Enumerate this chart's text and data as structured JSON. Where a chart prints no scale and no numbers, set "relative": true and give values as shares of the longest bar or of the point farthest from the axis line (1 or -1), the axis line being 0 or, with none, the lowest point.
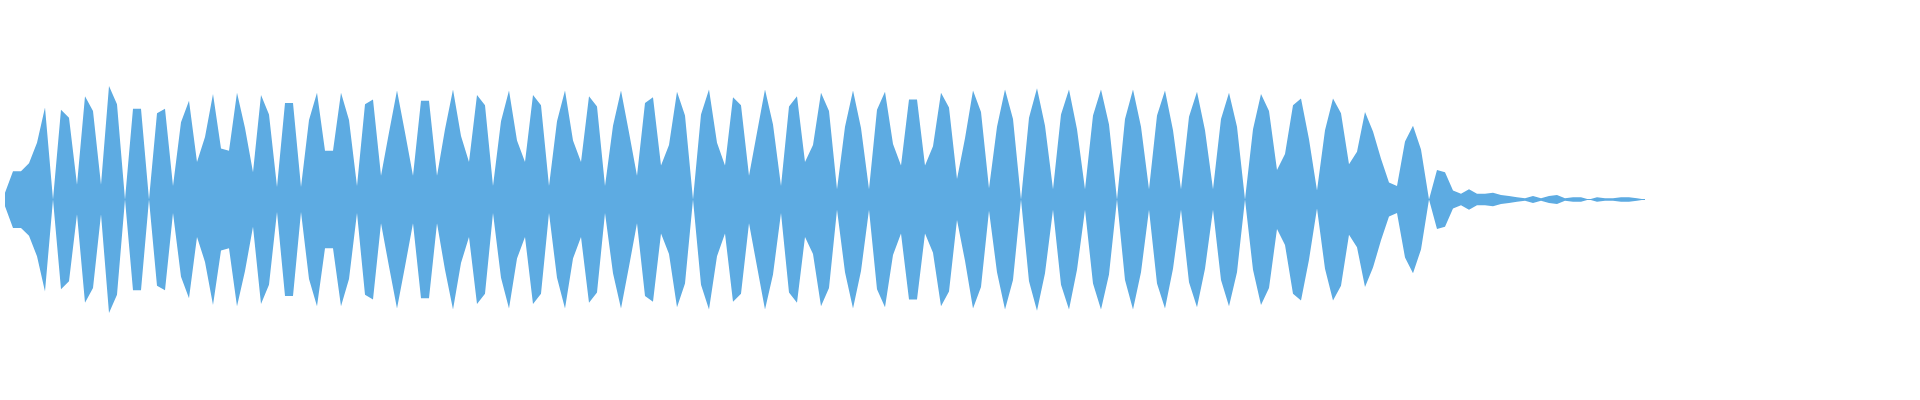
{
  "chart_data": {
    "type": "area",
    "relative": true,
    "categories": [
      null,
      null,
      null,
      null,
      null,
      null,
      null,
      null,
      null,
      null,
      null,
      null,
      null,
      null,
      null,
      null,
      null,
      null,
      null,
      null,
      null,
      null,
      null,
      null,
      null,
      null,
      null,
      null,
      null,
      null,
      null,
      null,
      null,
      null,
      null,
      null,
      null,
      null,
      null,
      null,
      null,
      null,
      null,
      null,
      null,
      null,
      null,
      null,
      null,
      null,
      null,
      null,
      null,
      null,
      null,
      null,
      null,
      null,
      null,
      null,
      null,
      null,
      null,
      null,
      null,
      null,
      null,
      null,
      null,
      null,
      null,
      null,
      null,
      null,
      null,
      null,
      null,
      null,
      null,
      null,
      null,
      null,
      null,
      null,
      null,
      null,
      null,
      null,
      null,
      null,
      null,
      null,
      null,
      null,
      null,
      null,
      null,
      null,
      null,
      null,
      null,
      null,
      null,
      null,
      null,
      null,
      null,
      null,
      null,
      null,
      null,
      null,
      null,
      null,
      null,
      null,
      null,
      null,
      null,
      null,
      null,
      null,
      null,
      null,
      null,
      null,
      null,
      null,
      null,
      null,
      null,
      null,
      null,
      null,
      null,
      null,
      null,
      null,
      null,
      null,
      null,
      null,
      null,
      null,
      null,
      null,
      null,
      null,
      null,
      null,
      null,
      null,
      null,
      null,
      null,
      null,
      null,
      null,
      null,
      null,
      null,
      null,
      null,
      null,
      null,
      null,
      null,
      null,
      null,
      null,
      null,
      null,
      null,
      null,
      null,
      null,
      null,
      null,
      null,
      null,
      null,
      null,
      null,
      null,
      null,
      null,
      null,
      null,
      null,
      null,
      null,
      null,
      null,
      null,
      null,
      null,
      null,
      null,
      null,
      null,
      null,
      null,
      null,
      null,
      null,
      null
    ],
    "series": [
      {
        "color": "#5dabe2",
        "values": [
          0.06,
          0.25,
          0.25,
          0.32,
          0.5,
          0.81,
          0,
          0.79,
          0.72,
          0.13,
          0.91,
          0.78,
          0.13,
          1,
          0.84,
          0,
          0.8,
          0.8,
          0,
          0.76,
          0.8,
          0.12,
          0.68,
          0.87,
          0.33,
          0.55,
          0.93,
          0.45,
          0.43,
          0.94,
          0.63,
          0.24,
          0.92,
          0.75,
          0.11,
          0.85,
          0.85,
          0.11,
          0.7,
          0.94,
          0.43,
          0.43,
          0.94,
          0.7,
          0.12,
          0.84,
          0.88,
          0.21,
          0.59,
          0.96,
          0.59,
          0.21,
          0.87,
          0.87,
          0.21,
          0.62,
          0.97,
          0.56,
          0.33,
          0.92,
          0.83,
          0.12,
          0.69,
          0.96,
          0.52,
          0.33,
          0.92,
          0.83,
          0.12,
          0.69,
          0.96,
          0.52,
          0.33,
          0.91,
          0.82,
          0.12,
          0.65,
          0.96,
          0.59,
          0.21,
          0.85,
          0.9,
          0.3,
          0.48,
          0.95,
          0.74,
          0,
          0.75,
          0.97,
          0.5,
          0.3,
          0.9,
          0.83,
          0.21,
          0.59,
          0.97,
          0.66,
          0.12,
          0.82,
          0.91,
          0.33,
          0.48,
          0.94,
          0.78,
          0.09,
          0.64,
          0.96,
          0.63,
          0.09,
          0.79,
          0.95,
          0.49,
          0.3,
          0.88,
          0.88,
          0.3,
          0.47,
          0.94,
          0.81,
          0.18,
          0.54,
          0.96,
          0.77,
          0.1,
          0.64,
          0.97,
          0.71,
          0,
          0.72,
          0.98,
          0.65,
          0.09,
          0.75,
          0.97,
          0.62,
          0.09,
          0.74,
          0.97,
          0.66,
          0,
          0.71,
          0.97,
          0.64,
          0.09,
          0.74,
          0.96,
          0.61,
          0.09,
          0.73,
          0.95,
          0.61,
          0.09,
          0.71,
          0.94,
          0.64,
          0,
          0.62,
          0.93,
          0.78,
          0.26,
          0.4,
          0.83,
          0.89,
          0.53,
          0.08,
          0.61,
          0.89,
          0.76,
          0.31,
          0.42,
          0.77,
          0.6,
          0.36,
          0.15,
          0.12,
          0.51,
          0.65,
          0.44,
          0,
          0.26,
          0.24,
          0.08,
          0.05,
          0.09,
          0.05,
          0.05,
          0.06,
          0.04,
          0.03,
          0.02,
          0.01,
          0.03,
          0.01,
          0.03,
          0.04,
          0.01,
          0.02,
          0.02,
          0,
          0.02,
          0.01,
          0.01,
          0.02,
          0.02,
          0.01,
          0
        ]
      },
      {
        "color": "#5dabe2",
        "values": [
          -0.06,
          -0.25,
          -0.25,
          -0.32,
          -0.5,
          -0.81,
          0,
          -0.79,
          -0.72,
          -0.13,
          -0.91,
          -0.78,
          -0.13,
          -1,
          -0.84,
          0,
          -0.8,
          -0.8,
          0,
          -0.76,
          -0.8,
          -0.12,
          -0.68,
          -0.87,
          -0.33,
          -0.55,
          -0.93,
          -0.45,
          -0.43,
          -0.94,
          -0.63,
          -0.24,
          -0.92,
          -0.75,
          -0.11,
          -0.85,
          -0.85,
          -0.11,
          -0.7,
          -0.94,
          -0.43,
          -0.43,
          -0.94,
          -0.7,
          -0.12,
          -0.84,
          -0.88,
          -0.21,
          -0.59,
          -0.96,
          -0.59,
          -0.21,
          -0.87,
          -0.87,
          -0.21,
          -0.62,
          -0.97,
          -0.56,
          -0.33,
          -0.92,
          -0.83,
          -0.12,
          -0.69,
          -0.96,
          -0.52,
          -0.33,
          -0.92,
          -0.83,
          -0.12,
          -0.69,
          -0.96,
          -0.52,
          -0.33,
          -0.91,
          -0.82,
          -0.12,
          -0.65,
          -0.96,
          -0.59,
          -0.21,
          -0.85,
          -0.9,
          -0.3,
          -0.48,
          -0.95,
          -0.74,
          0,
          -0.75,
          -0.97,
          -0.5,
          -0.3,
          -0.9,
          -0.83,
          -0.21,
          -0.59,
          -0.97,
          -0.66,
          -0.12,
          -0.82,
          -0.91,
          -0.33,
          -0.48,
          -0.94,
          -0.78,
          -0.09,
          -0.64,
          -0.96,
          -0.63,
          -0.09,
          -0.79,
          -0.95,
          -0.49,
          -0.3,
          -0.88,
          -0.88,
          -0.3,
          -0.47,
          -0.94,
          -0.81,
          -0.18,
          -0.54,
          -0.96,
          -0.77,
          -0.1,
          -0.64,
          -0.97,
          -0.71,
          0,
          -0.72,
          -0.98,
          -0.65,
          -0.09,
          -0.75,
          -0.97,
          -0.62,
          -0.09,
          -0.74,
          -0.97,
          -0.66,
          0,
          -0.71,
          -0.97,
          -0.64,
          -0.09,
          -0.74,
          -0.96,
          -0.61,
          -0.09,
          -0.73,
          -0.95,
          -0.61,
          -0.09,
          -0.71,
          -0.94,
          -0.64,
          0,
          -0.62,
          -0.93,
          -0.78,
          -0.26,
          -0.4,
          -0.83,
          -0.89,
          -0.53,
          -0.08,
          -0.61,
          -0.89,
          -0.76,
          -0.31,
          -0.42,
          -0.77,
          -0.6,
          -0.36,
          -0.15,
          -0.12,
          -0.51,
          -0.65,
          -0.44,
          0,
          -0.26,
          -0.24,
          -0.08,
          -0.05,
          -0.09,
          -0.05,
          -0.05,
          -0.06,
          -0.04,
          -0.03,
          -0.02,
          -0.01,
          -0.03,
          -0.01,
          -0.03,
          -0.04,
          -0.01,
          -0.02,
          -0.02,
          0,
          -0.02,
          -0.01,
          -0.01,
          -0.02,
          -0.02,
          -0.01,
          0
        ]
      }
    ]
  }
}
